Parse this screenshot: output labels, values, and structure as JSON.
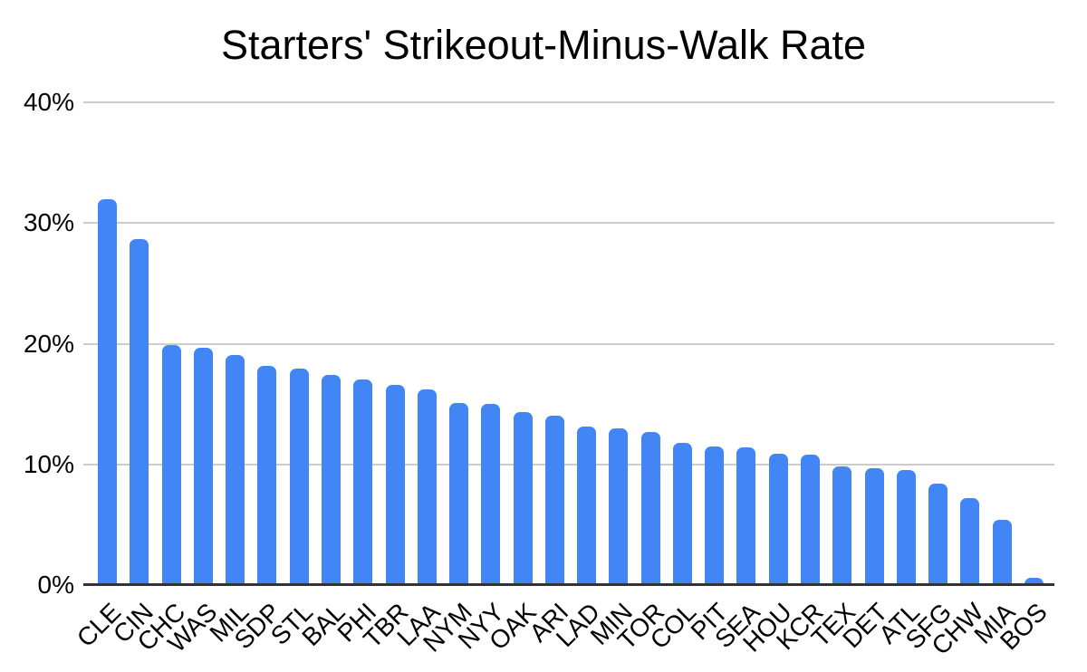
{
  "chart_data": {
    "type": "bar",
    "title": "Starters' Strikeout-Minus-Walk Rate",
    "categories": [
      "CLE",
      "CIN",
      "CHC",
      "WAS",
      "MIL",
      "SDP",
      "STL",
      "BAL",
      "PHI",
      "TBR",
      "LAA",
      "NYM",
      "NYY",
      "OAK",
      "ARI",
      "LAD",
      "MIN",
      "TOR",
      "COL",
      "PIT",
      "SEA",
      "HOU",
      "KCR",
      "TEX",
      "DET",
      "ATL",
      "SFG",
      "CHW",
      "MIA",
      "BOS"
    ],
    "values": [
      32.0,
      28.7,
      19.9,
      19.7,
      19.1,
      18.2,
      17.9,
      17.4,
      17.0,
      16.6,
      16.2,
      15.1,
      15.0,
      14.3,
      14.0,
      13.1,
      13.0,
      12.7,
      11.8,
      11.5,
      11.4,
      10.9,
      10.8,
      9.8,
      9.7,
      9.5,
      8.4,
      7.2,
      5.4,
      0.6
    ],
    "xlabel": "",
    "ylabel": "",
    "ylim": [
      0,
      40
    ],
    "yticks": [
      {
        "label": "0%",
        "value": 0
      },
      {
        "label": "10%",
        "value": 10
      },
      {
        "label": "20%",
        "value": 20
      },
      {
        "label": "30%",
        "value": 30
      },
      {
        "label": "40%",
        "value": 40
      }
    ],
    "grid": true,
    "legend": "none",
    "bar_color": "#4285f4",
    "gridline_color": "#cccccc",
    "axis_color": "#333333",
    "background_color": "#ffffff"
  }
}
